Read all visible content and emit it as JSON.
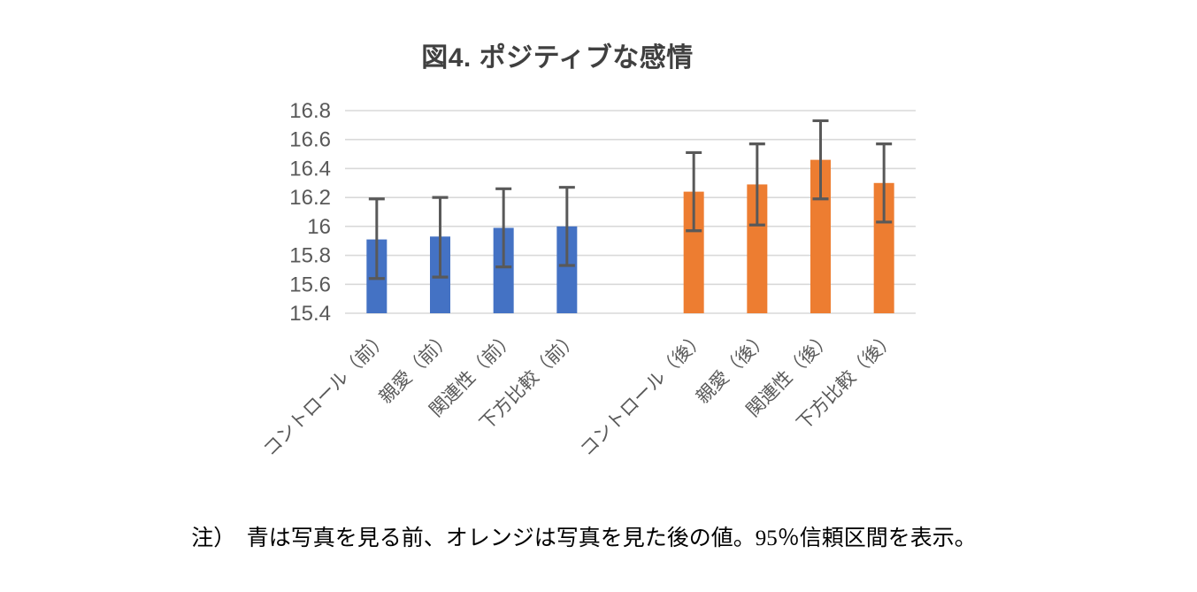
{
  "chart_data": {
    "type": "bar",
    "title": "図4. ポジティブな感情",
    "categories": [
      "コントロール（前）",
      "親愛（前）",
      "関連性（前）",
      "下方比較（前）",
      "コントロール（後）",
      "親愛（後）",
      "関連性（後）",
      "下方比較（後）"
    ],
    "values": [
      15.91,
      15.93,
      15.99,
      16.0,
      16.24,
      16.29,
      16.46,
      16.3
    ],
    "error_low": [
      15.64,
      15.65,
      15.72,
      15.73,
      15.97,
      16.01,
      16.19,
      16.03
    ],
    "error_high": [
      16.19,
      16.2,
      16.26,
      16.27,
      16.51,
      16.57,
      16.73,
      16.57
    ],
    "bar_colors": [
      "#4472C4",
      "#4472C4",
      "#4472C4",
      "#4472C4",
      "#ED7D31",
      "#ED7D31",
      "#ED7D31",
      "#ED7D31"
    ],
    "series_meaning": {
      "blue": "写真を見る前",
      "orange": "写真を見た後"
    },
    "group_gap_after_index": 3,
    "ylim": [
      15.4,
      16.8
    ],
    "ytick_step": 0.2,
    "ytick_labels": [
      "15.4",
      "15.6",
      "15.8",
      "16",
      "16.2",
      "16.4",
      "16.6",
      "16.8"
    ],
    "grid": true,
    "legend": "none",
    "error_bars": "95％信頼区間",
    "xlabel": "",
    "ylabel": ""
  },
  "note": "注）　青は写真を見る前、オレンジは写真を見た後の値。95％信頼区間を表示。",
  "colors": {
    "blue": "#4472C4",
    "orange": "#ED7D31",
    "gridline": "#D9D9D9",
    "error_bar": "#595959",
    "axis_text": "#595959",
    "title_text": "#404040",
    "note_text": "#000000",
    "background": "#FFFFFF"
  }
}
